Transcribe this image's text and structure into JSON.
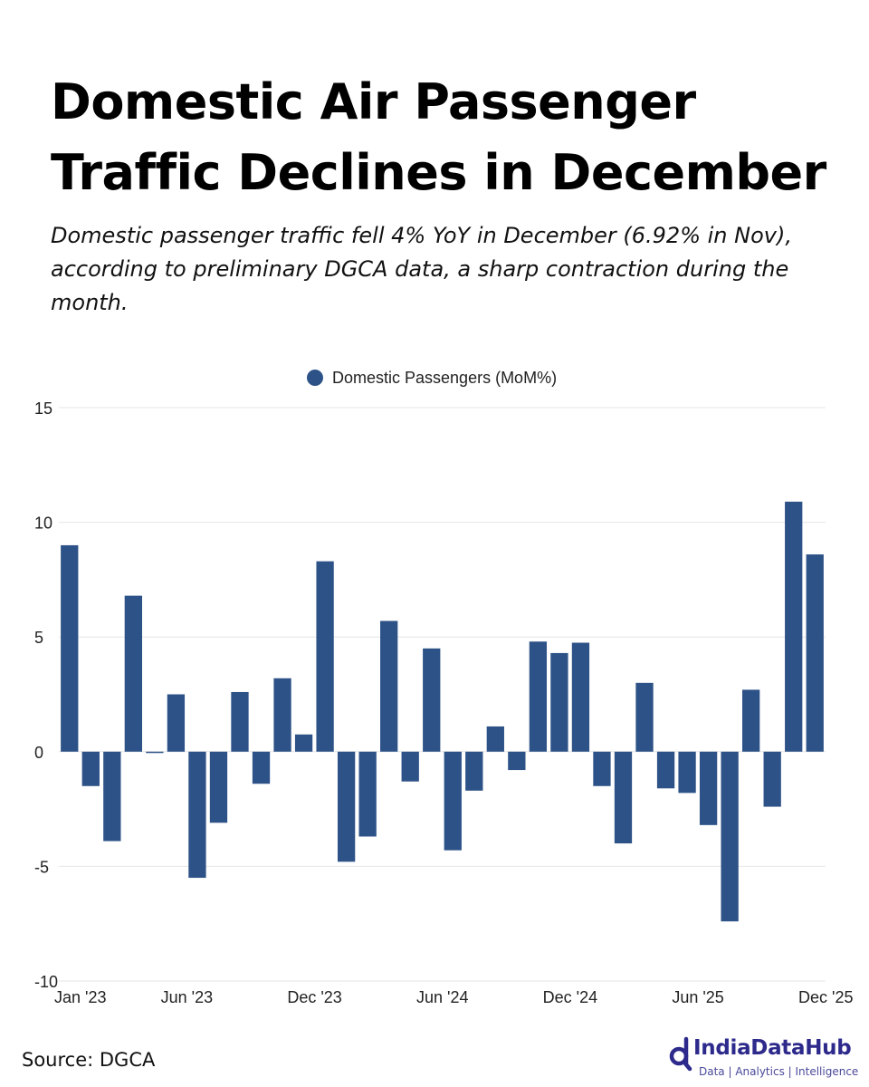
{
  "title": "Domestic Air Passenger Traffic Declines in December",
  "subtitle": "Domestic passenger traffic fell 4% YoY in December (6.92% in Nov), according to preliminary DGCA data, a sharp contraction during the month.",
  "source": "Source: DGCA",
  "brand": {
    "name": "IndiaDataHub",
    "tagline": "Data | Analytics | Intelligence",
    "icon": "magnifier-d-logo-icon",
    "color": "#2d2a8c"
  },
  "chart_data": {
    "type": "bar",
    "legend_position": "top-center",
    "grid": true,
    "bar_color": "#2d5287",
    "ylim": [
      -10,
      15
    ],
    "yticks": [
      15,
      10,
      5,
      0,
      -5,
      -10
    ],
    "xticks": [
      "Jan '23",
      "Jun '23",
      "Dec '23",
      "Jun '24",
      "Dec '24",
      "Jun '25",
      "Dec '25"
    ],
    "categories": [
      "Jan '23",
      "Feb '23",
      "Mar '23",
      "Apr '23",
      "May '23",
      "Jun '23",
      "Jul '23",
      "Aug '23",
      "Sep '23",
      "Oct '23",
      "Nov '23",
      "Dec '23",
      "Jan '24",
      "Feb '24",
      "Mar '24",
      "Apr '24",
      "May '24",
      "Jun '24",
      "Jul '24",
      "Aug '24",
      "Sep '24",
      "Oct '24",
      "Nov '24",
      "Dec '24",
      "Jan '25",
      "Feb '25",
      "Mar '25",
      "Apr '25",
      "May '25",
      "Jun '25",
      "Jul '25",
      "Aug '25",
      "Sep '25",
      "Oct '25",
      "Nov '25",
      "Dec '25"
    ],
    "series": [
      {
        "name": "Domestic Passengers (MoM%)",
        "values": [
          9.0,
          -1.5,
          -3.9,
          6.8,
          -0.05,
          2.5,
          -5.5,
          -3.1,
          2.6,
          -1.4,
          3.2,
          0.75,
          8.3,
          -4.8,
          -3.7,
          5.7,
          -1.3,
          4.5,
          -4.3,
          -1.7,
          1.1,
          -0.8,
          4.8,
          4.3,
          4.75,
          -1.5,
          -4.0,
          3.0,
          -1.6,
          -1.8,
          -3.2,
          -7.4,
          2.7,
          -2.4,
          10.9,
          8.6
        ]
      }
    ]
  }
}
